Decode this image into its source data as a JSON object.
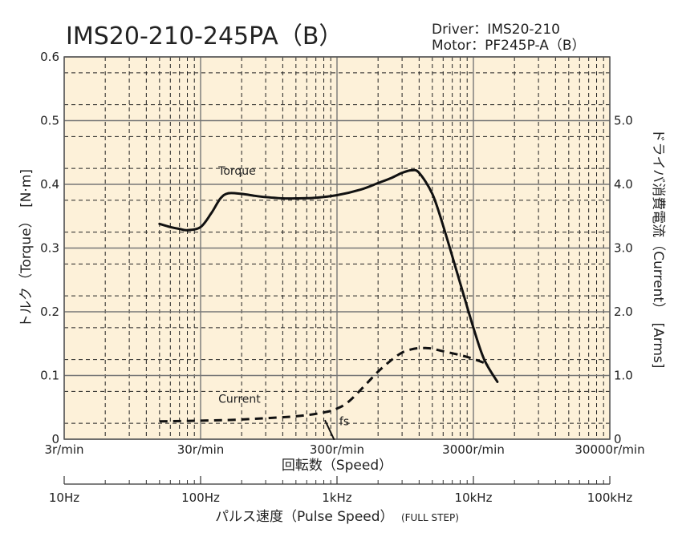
{
  "chart_data": {
    "type": "line",
    "title": "IMS20-210-245PA（B）",
    "info": {
      "driver": "Driver：IMS20-210",
      "motor": "Motor：PF245P-A（B）"
    },
    "x_scale": "log",
    "xlim": [
      10,
      100000
    ],
    "x_unit": "Hz",
    "xlabel_speed": "回転数（Speed）",
    "xlabel_pulse": "パルス速度（Pulse Speed）",
    "xlabel_pulse_note": "(FULL STEP)",
    "speed_ticks": [
      {
        "hz": 10,
        "label": "3r/min"
      },
      {
        "hz": 100,
        "label": "30r/min"
      },
      {
        "hz": 1000,
        "label": "300r/min"
      },
      {
        "hz": 10000,
        "label": "3000r/min"
      },
      {
        "hz": 100000,
        "label": "30000r/min"
      }
    ],
    "pulse_ticks": [
      {
        "hz": 10,
        "label": "10Hz"
      },
      {
        "hz": 100,
        "label": "100Hz"
      },
      {
        "hz": 1000,
        "label": "1kHz"
      },
      {
        "hz": 10000,
        "label": "10kHz"
      },
      {
        "hz": 100000,
        "label": "100kHz"
      }
    ],
    "ylabel_left": "トルク（Torque）　[N·m]",
    "ylim_left": [
      0,
      0.6
    ],
    "yticks_left": [
      "0",
      "0.1",
      "0.2",
      "0.3",
      "0.4",
      "0.5",
      "0.6"
    ],
    "ylabel_right": "ドライバ消費電流（Current）　[Arms]",
    "ylim_right": [
      0,
      6.0
    ],
    "yticks_right": [
      "0",
      "1.0",
      "2.0",
      "3.0",
      "4.0",
      "5.0"
    ],
    "grid": true,
    "series": [
      {
        "name": "Torque",
        "axis": "left",
        "style": "solid",
        "x": [
          50,
          60,
          70,
          80,
          100,
          120,
          140,
          160,
          200,
          250,
          300,
          400,
          500,
          700,
          1000,
          1500,
          2000,
          2500,
          3000,
          3500,
          4000,
          5000,
          6000,
          8000,
          10000,
          12000,
          15000
        ],
        "y": [
          0.338,
          0.333,
          0.33,
          0.328,
          0.333,
          0.355,
          0.378,
          0.386,
          0.385,
          0.382,
          0.38,
          0.378,
          0.378,
          0.379,
          0.383,
          0.392,
          0.402,
          0.41,
          0.418,
          0.422,
          0.418,
          0.385,
          0.335,
          0.245,
          0.175,
          0.125,
          0.09
        ]
      },
      {
        "name": "Current",
        "axis": "right",
        "style": "dashed",
        "x": [
          50,
          100,
          200,
          500,
          800,
          1000,
          1200,
          1500,
          2000,
          2500,
          3000,
          3500,
          4000,
          4500,
          5000,
          6000,
          8000,
          10000,
          13000
        ],
        "y": [
          0.28,
          0.29,
          0.31,
          0.36,
          0.42,
          0.48,
          0.58,
          0.78,
          1.06,
          1.24,
          1.36,
          1.41,
          1.43,
          1.43,
          1.42,
          1.38,
          1.32,
          1.26,
          1.17
        ]
      },
      {
        "name": "fs",
        "axis": "left",
        "style": "solid",
        "x": [
          820,
          950
        ],
        "y": [
          0.029,
          0
        ]
      }
    ]
  }
}
